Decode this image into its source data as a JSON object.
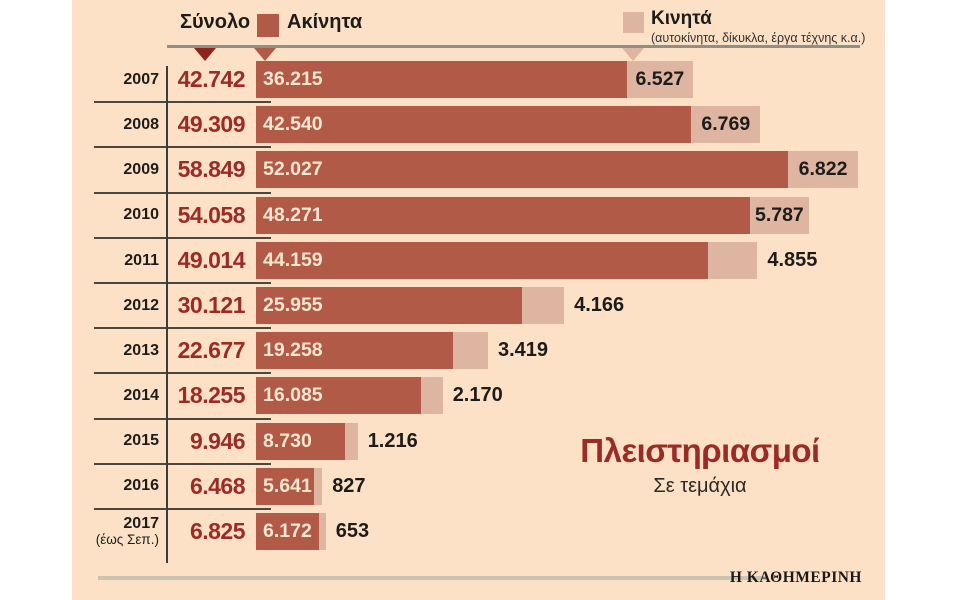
{
  "legend": {
    "total_label": "Σύνολο",
    "akinita_label": "Ακίνητα",
    "kinita_label": "Κινητά",
    "kinita_sublabel": "(αυτοκίνητα, δίκυκλα, έργα τέχνης κ.α.)"
  },
  "title": {
    "main": "Πλειστηριασμοί",
    "subtitle": "Σε τεμάχια"
  },
  "footer": {
    "source": "Η ΚΑΘΗΜΕΡΙΝΗ"
  },
  "colors": {
    "background": "#fce1c6",
    "akinita_bar": "#b15a48",
    "kinita_bar": "#deb5a0",
    "accent_red": "#9c2b26",
    "total_marker": "#8f241f"
  },
  "chart_data": {
    "type": "bar",
    "orientation": "horizontal",
    "stacked": true,
    "title": "Πλειστηριασμοί",
    "subtitle": "Σε τεμάχια",
    "legend_position": "top",
    "max_total": 58849,
    "categories": [
      "2007",
      "2008",
      "2009",
      "2010",
      "2011",
      "2012",
      "2013",
      "2014",
      "2015",
      "2016",
      "2017 (έως Σεπ.)"
    ],
    "series": [
      {
        "name": "Σύνολο",
        "values": [
          42742,
          49309,
          58849,
          54058,
          49014,
          30121,
          22677,
          18255,
          9946,
          6468,
          6825
        ]
      },
      {
        "name": "Ακίνητα",
        "values": [
          36215,
          42540,
          52027,
          48271,
          44159,
          25955,
          19258,
          16085,
          8730,
          5641,
          6172
        ]
      },
      {
        "name": "Κινητά",
        "values": [
          6527,
          6769,
          6822,
          5787,
          4855,
          4166,
          3419,
          2170,
          1216,
          827,
          653
        ]
      }
    ],
    "rows": [
      {
        "year": "2007",
        "year_note": "",
        "total": 42742,
        "total_label": "42.742",
        "akinita": 36215,
        "akinita_label": "36.215",
        "kinita": 6527,
        "kinita_label": "6.527",
        "kinita_label_inside": true
      },
      {
        "year": "2008",
        "year_note": "",
        "total": 49309,
        "total_label": "49.309",
        "akinita": 42540,
        "akinita_label": "42.540",
        "kinita": 6769,
        "kinita_label": "6.769",
        "kinita_label_inside": true
      },
      {
        "year": "2009",
        "year_note": "",
        "total": 58849,
        "total_label": "58.849",
        "akinita": 52027,
        "akinita_label": "52.027",
        "kinita": 6822,
        "kinita_label": "6.822",
        "kinita_label_inside": true
      },
      {
        "year": "2010",
        "year_note": "",
        "total": 54058,
        "total_label": "54.058",
        "akinita": 48271,
        "akinita_label": "48.271",
        "kinita": 5787,
        "kinita_label": "5.787",
        "kinita_label_inside": true
      },
      {
        "year": "2011",
        "year_note": "",
        "total": 49014,
        "total_label": "49.014",
        "akinita": 44159,
        "akinita_label": "44.159",
        "kinita": 4855,
        "kinita_label": "4.855",
        "kinita_label_inside": false
      },
      {
        "year": "2012",
        "year_note": "",
        "total": 30121,
        "total_label": "30.121",
        "akinita": 25955,
        "akinita_label": "25.955",
        "kinita": 4166,
        "kinita_label": "4.166",
        "kinita_label_inside": false
      },
      {
        "year": "2013",
        "year_note": "",
        "total": 22677,
        "total_label": "22.677",
        "akinita": 19258,
        "akinita_label": "19.258",
        "kinita": 3419,
        "kinita_label": "3.419",
        "kinita_label_inside": false
      },
      {
        "year": "2014",
        "year_note": "",
        "total": 18255,
        "total_label": "18.255",
        "akinita": 16085,
        "akinita_label": "16.085",
        "kinita": 2170,
        "kinita_label": "2.170",
        "kinita_label_inside": false
      },
      {
        "year": "2015",
        "year_note": "",
        "total": 9946,
        "total_label": "9.946",
        "akinita": 8730,
        "akinita_label": "8.730",
        "kinita": 1216,
        "kinita_label": "1.216",
        "kinita_label_inside": false
      },
      {
        "year": "2016",
        "year_note": "",
        "total": 6468,
        "total_label": "6.468",
        "akinita": 5641,
        "akinita_label": "5.641",
        "kinita": 827,
        "kinita_label": "827",
        "kinita_label_inside": false
      },
      {
        "year": "2017",
        "year_note": "(έως Σεπ.)",
        "total": 6825,
        "total_label": "6.825",
        "akinita": 6172,
        "akinita_label": "6.172",
        "kinita": 653,
        "kinita_label": "653",
        "kinita_label_inside": false
      }
    ]
  }
}
